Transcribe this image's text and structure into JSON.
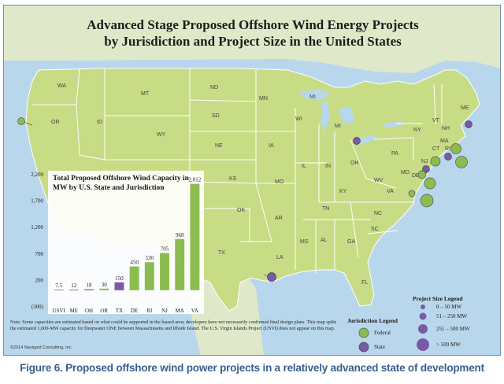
{
  "title_lines": [
    "Advanced Stage Proposed Offshore Wind Energy Projects",
    "by Jurisdiction and Project Size in the United States"
  ],
  "caption": "Figure 6. Proposed offshore wind power projects in a relatively advanced state of development",
  "colors": {
    "water": "#b9d7ec",
    "land": "#c7dc85",
    "federal": "#8cbc4f",
    "state": "#7a5aa6",
    "border": "#ffffff"
  },
  "states": [
    "WA",
    "OR",
    "ID",
    "MT",
    "WY",
    "ND",
    "SD",
    "NE",
    "MN",
    "WI",
    "MI",
    "MI",
    "IA",
    "IL",
    "IN",
    "OH",
    "PA",
    "NY",
    "VT",
    "NH",
    "ME",
    "MA",
    "CT",
    "RI",
    "NJ",
    "DE",
    "MD",
    "VA",
    "WV",
    "KY",
    "TN",
    "NC",
    "SC",
    "GA",
    "AL",
    "MS",
    "AR",
    "LA",
    "MO",
    "KS",
    "OK",
    "TX",
    "FL"
  ],
  "chart_data": {
    "type": "bar",
    "title": "Total Proposed Offshore Wind Capacity in MW by U.S. State and Jurisdiction",
    "categories": [
      "USVI",
      "ME",
      "OH",
      "OR",
      "TX",
      "DE",
      "RI",
      "NJ",
      "MA",
      "VA"
    ],
    "values": [
      7.5,
      12,
      18,
      30,
      150,
      450,
      530,
      705,
      968,
      2012
    ],
    "value_labels": [
      "7.5",
      "12",
      "18",
      "30",
      "150",
      "450",
      "530",
      "705",
      "968",
      "2,012"
    ],
    "jurisdiction": [
      "state",
      "state",
      "state",
      "federal",
      "state",
      "federal",
      "federal",
      "federal",
      "federal",
      "federal"
    ],
    "y_ticks": [
      -300,
      200,
      700,
      1200,
      1700,
      2200
    ],
    "y_tick_labels": [
      "(300)",
      "200",
      "700",
      "1,200",
      "1,700",
      "2,200"
    ],
    "ylim": [
      -300,
      2200
    ]
  },
  "note": "Note: Some capacities are estimated based on what could be supported in the leased area; developers have not necessarily confirmed final design plans. This map splits the estimated 1,000-MW capacity for Deepwater ONE between Massachusetts and Rhode Island. The U.S. Virgin Islands Project (USVI) does not appear on this map.",
  "copyright": "©2014 Navigant Consulting, Inc.",
  "jurisdiction_legend": {
    "title": "Jurisdiction Legend",
    "items": [
      {
        "label": "Federal",
        "kind": "federal"
      },
      {
        "label": "State",
        "kind": "state"
      }
    ]
  },
  "size_legend": {
    "title": "Project Size Legend",
    "items": [
      "0 – 50 MW",
      "51 – 250 MW",
      "251 – 500 MW",
      "> 500 MW"
    ]
  },
  "projects": [
    {
      "state": "OR",
      "kind": "federal",
      "mw": 30
    },
    {
      "state": "OH",
      "kind": "state",
      "mw": 18
    },
    {
      "state": "ME",
      "kind": "state",
      "mw": 12
    },
    {
      "state": "MA",
      "kind": "federal",
      "mw": 968
    },
    {
      "state": "RI",
      "kind": "federal",
      "mw": 530
    },
    {
      "state": "RI",
      "kind": "state",
      "mw": 30
    },
    {
      "state": "NJ",
      "kind": "federal",
      "mw": 705
    },
    {
      "state": "DE",
      "kind": "federal",
      "mw": 450
    },
    {
      "state": "VA",
      "kind": "federal",
      "mw": 2012
    },
    {
      "state": "TX",
      "kind": "state",
      "mw": 150
    }
  ]
}
